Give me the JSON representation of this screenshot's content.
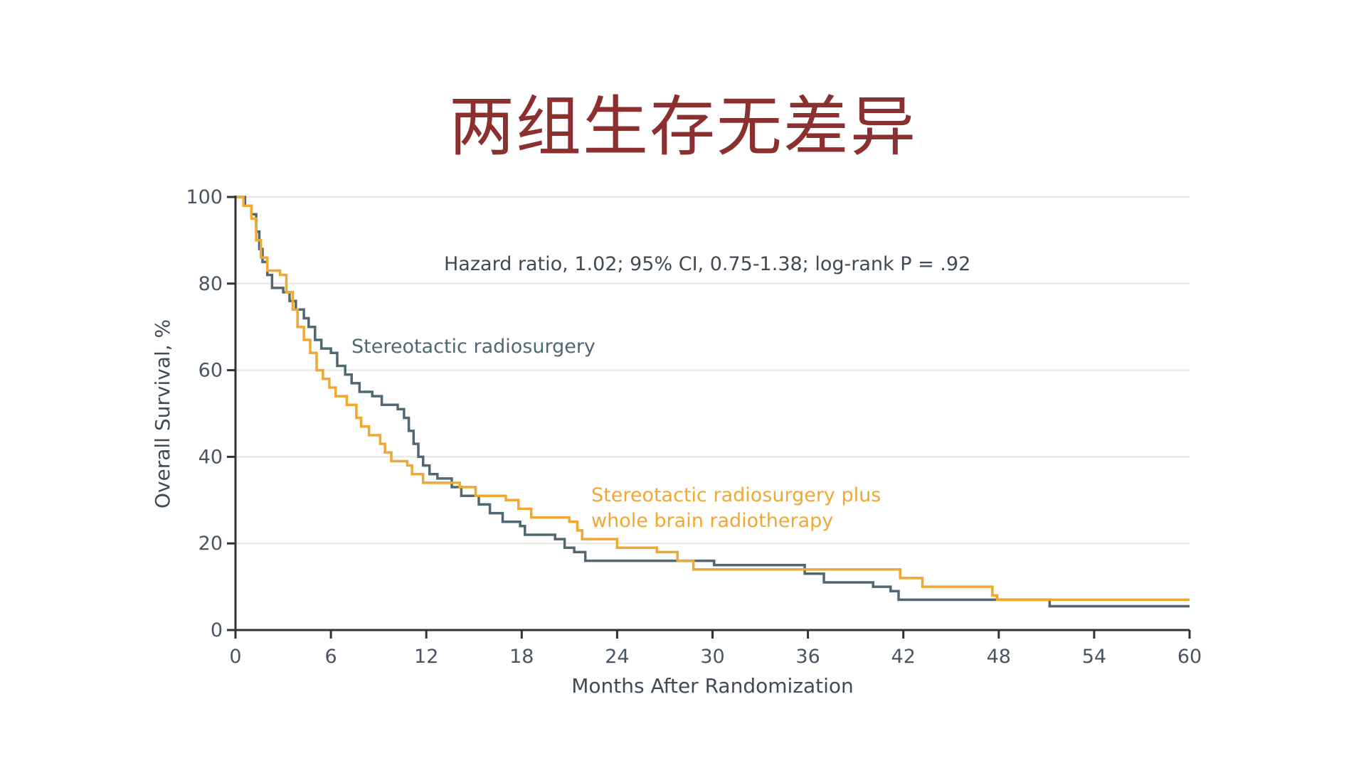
{
  "slide": {
    "title": "两组生存无差异"
  },
  "chart_data": {
    "type": "line",
    "step": true,
    "xlabel": "Months After Randomization",
    "ylabel": "Overall Survival, %",
    "xlim": [
      0,
      60
    ],
    "ylim": [
      0,
      100
    ],
    "xticks": [
      0,
      6,
      12,
      18,
      24,
      30,
      36,
      42,
      48,
      54,
      60
    ],
    "yticks": [
      0,
      20,
      40,
      60,
      80,
      100
    ],
    "grid": "horizontal",
    "annotation": "Hazard ratio, 1.02;  95% CI, 0.75-1.38; log-rank P = .92",
    "colors": {
      "axis": "#333333",
      "grid": "#e6e6e6"
    },
    "series": [
      {
        "name": "Stereotactic radiosurgery",
        "color": "#4f6874",
        "label_lines": [
          "Stereotactic radiosurgery"
        ],
        "points": [
          [
            0,
            100
          ],
          [
            0.6,
            98
          ],
          [
            1.0,
            96
          ],
          [
            1.3,
            92
          ],
          [
            1.5,
            88
          ],
          [
            1.7,
            85
          ],
          [
            2.0,
            82
          ],
          [
            2.3,
            79
          ],
          [
            3.0,
            78
          ],
          [
            3.4,
            76
          ],
          [
            3.8,
            74
          ],
          [
            4.3,
            72
          ],
          [
            4.6,
            70
          ],
          [
            5.0,
            67
          ],
          [
            5.4,
            65
          ],
          [
            6.0,
            64
          ],
          [
            6.4,
            61
          ],
          [
            6.9,
            59
          ],
          [
            7.3,
            57
          ],
          [
            7.8,
            55
          ],
          [
            8.6,
            54
          ],
          [
            9.2,
            52
          ],
          [
            10.2,
            51
          ],
          [
            10.6,
            49
          ],
          [
            10.9,
            46
          ],
          [
            11.2,
            43
          ],
          [
            11.5,
            40
          ],
          [
            11.8,
            38
          ],
          [
            12.2,
            36
          ],
          [
            12.7,
            35
          ],
          [
            13.6,
            33
          ],
          [
            14.2,
            31
          ],
          [
            15.3,
            29
          ],
          [
            16.0,
            27
          ],
          [
            16.8,
            25
          ],
          [
            17.9,
            24
          ],
          [
            18.2,
            22
          ],
          [
            20.1,
            21
          ],
          [
            20.7,
            19
          ],
          [
            21.3,
            18
          ],
          [
            22.0,
            16
          ],
          [
            30.1,
            15
          ],
          [
            35.8,
            13
          ],
          [
            37.0,
            11
          ],
          [
            40.1,
            10
          ],
          [
            41.2,
            9
          ],
          [
            41.7,
            7
          ],
          [
            47.8,
            7
          ],
          [
            51.2,
            5.5
          ],
          [
            60,
            5.5
          ]
        ]
      },
      {
        "name": "Stereotactic radiosurgery plus whole brain radiotherapy",
        "color": "#f0a830",
        "label_lines": [
          "Stereotactic radiosurgery plus",
          "whole brain radiotherapy"
        ],
        "points": [
          [
            0,
            100
          ],
          [
            0.5,
            98
          ],
          [
            1.0,
            95
          ],
          [
            1.3,
            90
          ],
          [
            1.6,
            86
          ],
          [
            2.0,
            83
          ],
          [
            2.8,
            82
          ],
          [
            3.2,
            78
          ],
          [
            3.6,
            74
          ],
          [
            3.9,
            70
          ],
          [
            4.3,
            67
          ],
          [
            4.7,
            64
          ],
          [
            5.1,
            60
          ],
          [
            5.5,
            58
          ],
          [
            5.9,
            56
          ],
          [
            6.3,
            54
          ],
          [
            7.0,
            52
          ],
          [
            7.6,
            49
          ],
          [
            7.9,
            47
          ],
          [
            8.4,
            45
          ],
          [
            9.1,
            43
          ],
          [
            9.4,
            41
          ],
          [
            9.8,
            39
          ],
          [
            10.8,
            38
          ],
          [
            11.1,
            36
          ],
          [
            11.8,
            34
          ],
          [
            14.1,
            33
          ],
          [
            15.1,
            31
          ],
          [
            17.0,
            30
          ],
          [
            17.8,
            28
          ],
          [
            18.6,
            26
          ],
          [
            21.0,
            25
          ],
          [
            21.5,
            23
          ],
          [
            21.8,
            21
          ],
          [
            24.0,
            19
          ],
          [
            26.5,
            18
          ],
          [
            27.8,
            16
          ],
          [
            28.8,
            14
          ],
          [
            36.0,
            14
          ],
          [
            41.8,
            12
          ],
          [
            43.2,
            10
          ],
          [
            47.6,
            8
          ],
          [
            47.9,
            7
          ],
          [
            60,
            7
          ]
        ]
      }
    ]
  }
}
